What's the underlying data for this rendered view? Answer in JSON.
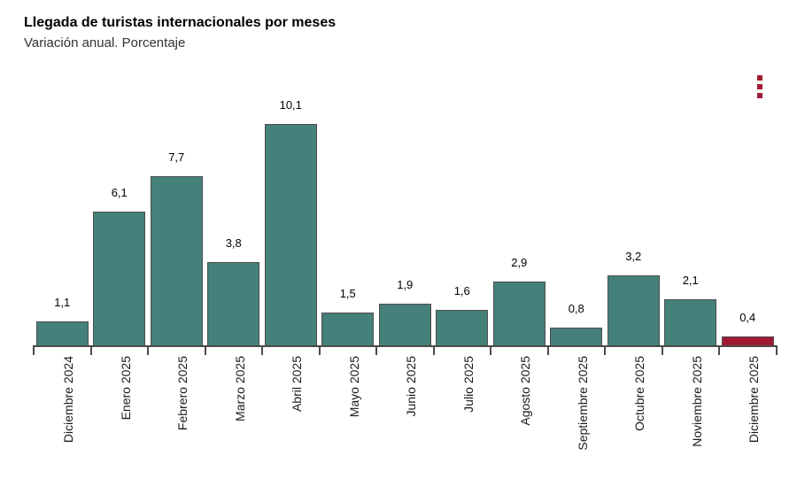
{
  "header": {
    "title": "Llegada de turistas internacionales por meses",
    "subtitle": "Variación anual. Porcentaje"
  },
  "menu": {
    "icon": "kebab-menu-icon"
  },
  "colors": {
    "bar_default": "#45807a",
    "bar_highlight": "#a11a33",
    "axis": "#4a4a4a",
    "bar_border": "#4d4d4d",
    "menu_dots": "#a11a33"
  },
  "chart_data": {
    "type": "bar",
    "title": "Llegada de turistas internacionales por meses",
    "subtitle": "Variación anual. Porcentaje",
    "categories": [
      "Diciembre 2024",
      "Enero 2025",
      "Febrero 2025",
      "Marzo 2025",
      "Abril 2025",
      "Mayo 2025",
      "Junio 2025",
      "Julio 2025",
      "Agosto 2025",
      "Septiembre 2025",
      "Octubre 2025",
      "Noviembre 2025",
      "Diciembre 2025"
    ],
    "values": [
      1.1,
      6.1,
      7.7,
      3.8,
      10.1,
      1.5,
      1.9,
      1.6,
      2.9,
      0.8,
      3.2,
      2.1,
      0.4
    ],
    "value_labels": [
      "1,1",
      "6,1",
      "7,7",
      "3,8",
      "10,1",
      "1,5",
      "1,9",
      "1,6",
      "2,9",
      "0,8",
      "3,2",
      "2,1",
      "0,4"
    ],
    "highlight_index": 12,
    "xlabel": "",
    "ylabel": "",
    "ylim": [
      0,
      10.6
    ],
    "grid": false,
    "legend": false,
    "y_axis_visible": false,
    "x_label_rotation": -90
  }
}
